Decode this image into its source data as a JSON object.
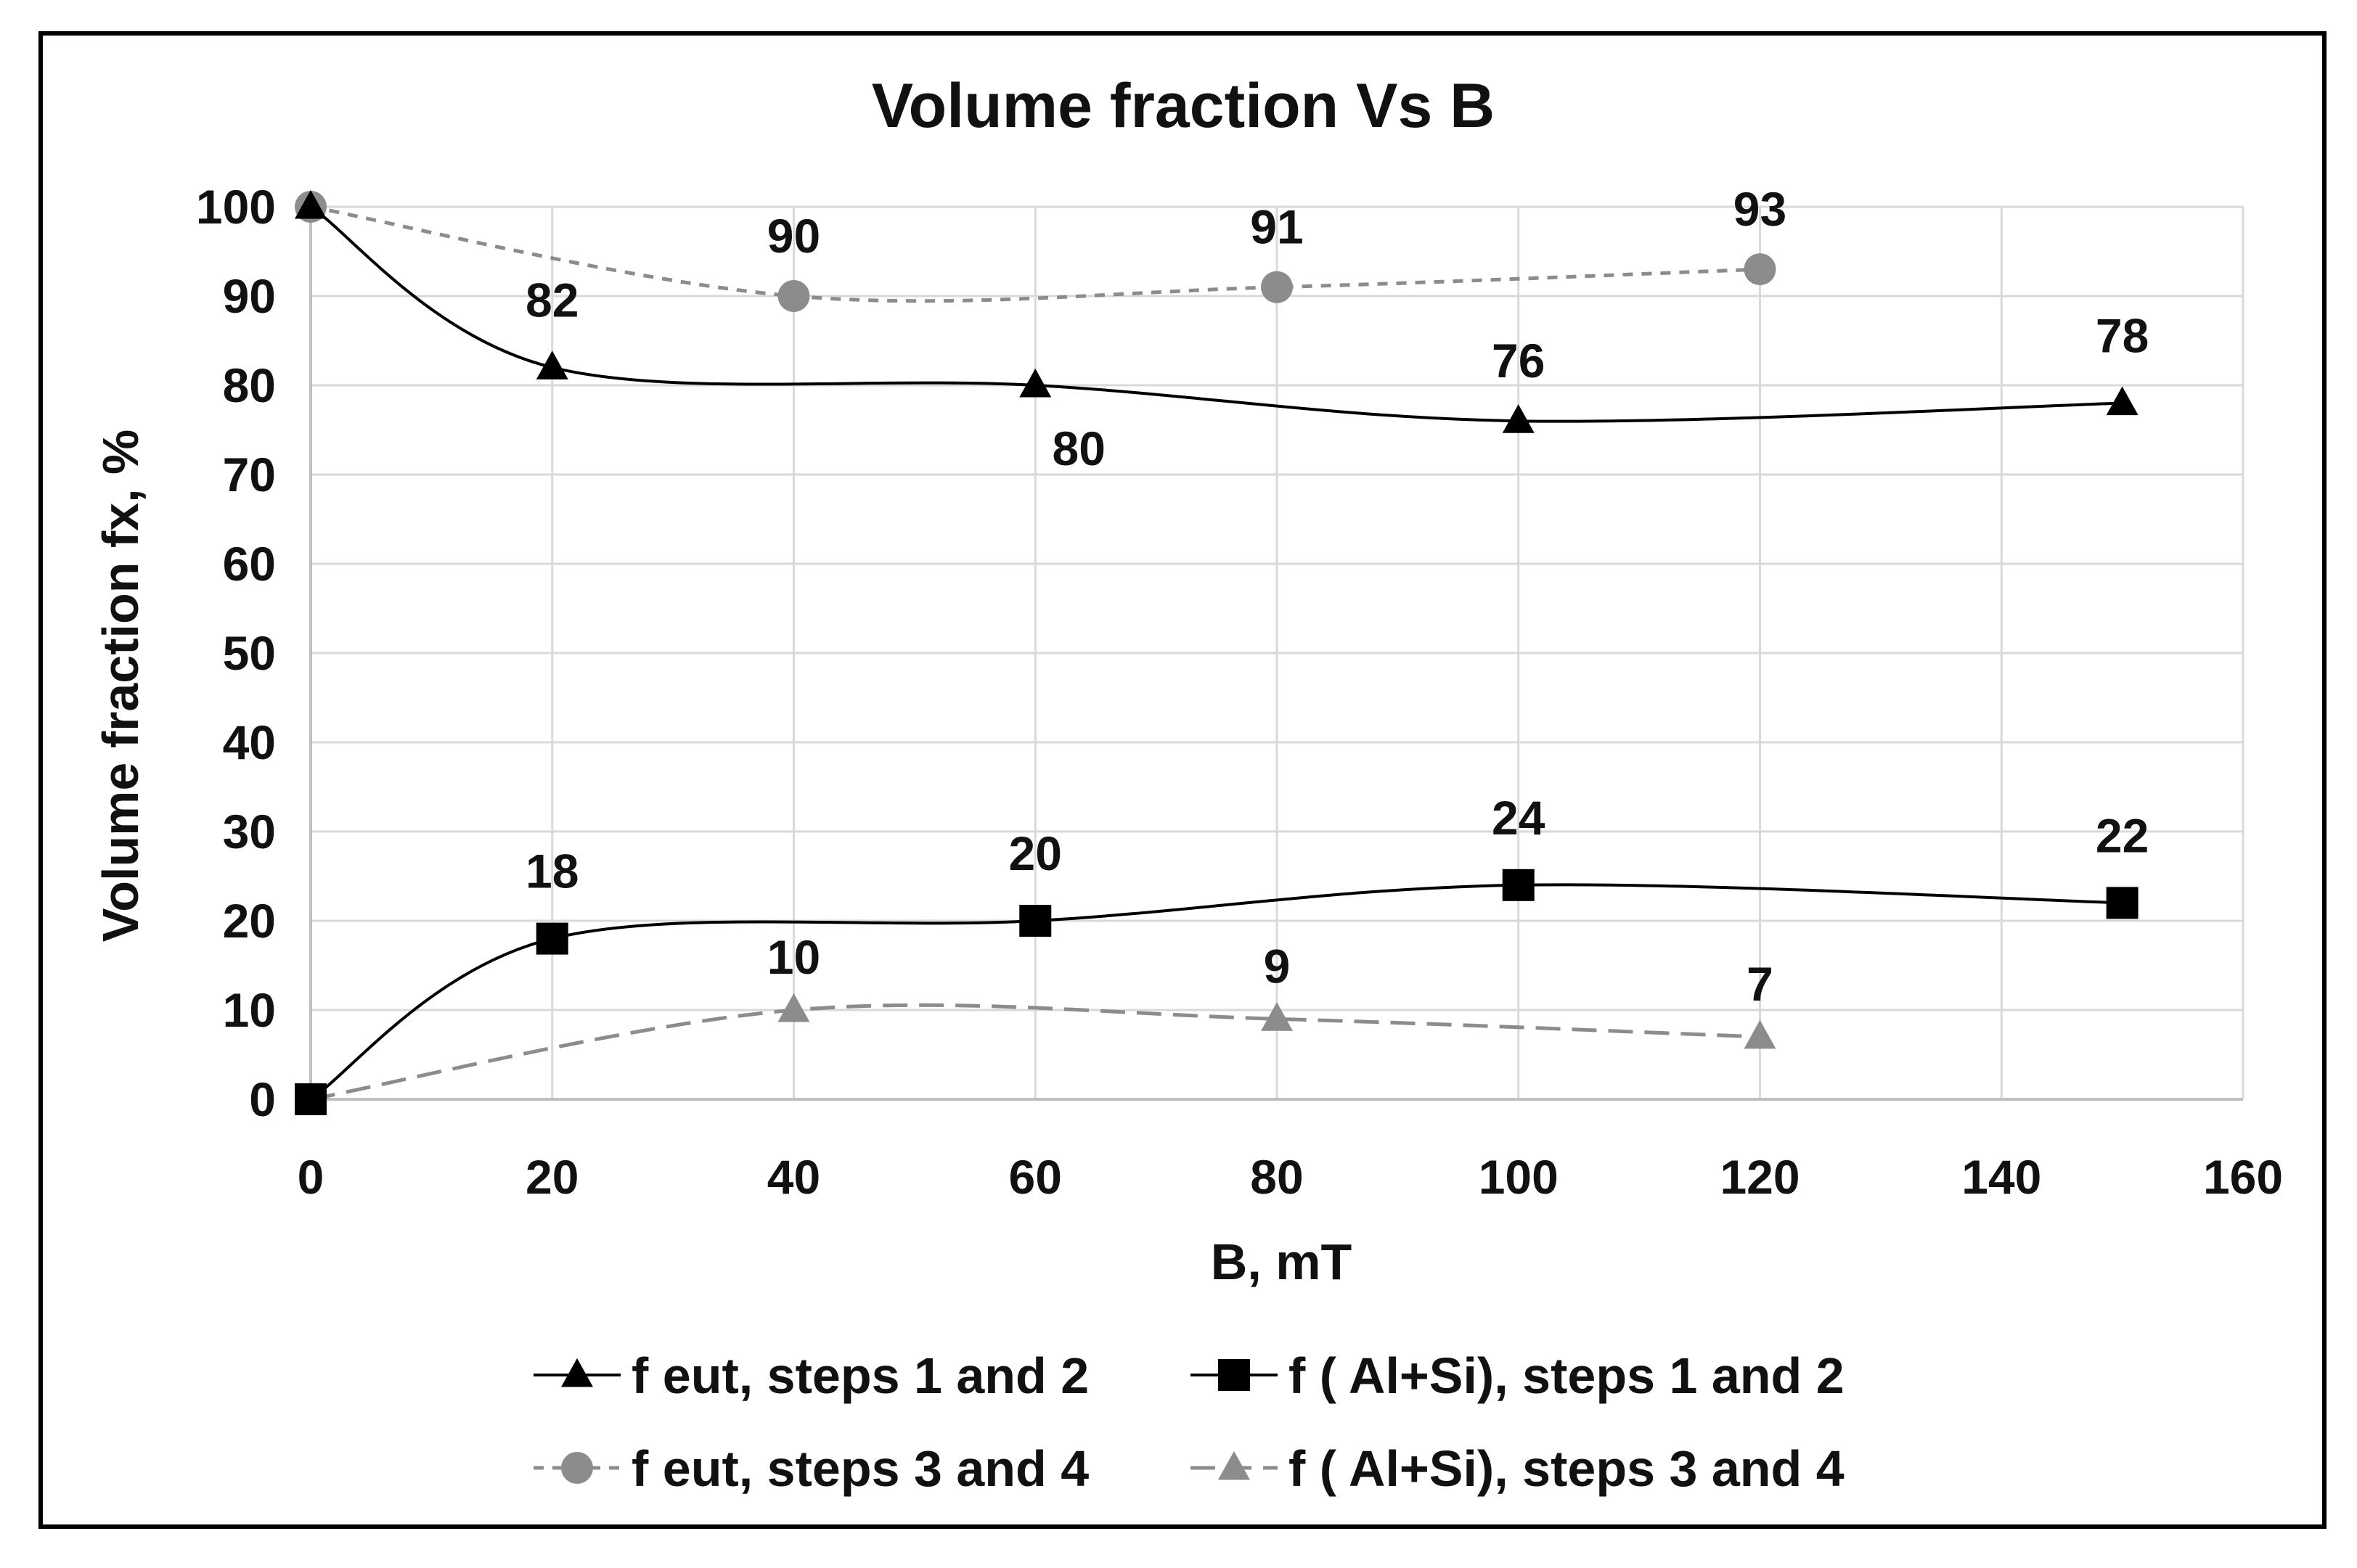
{
  "chart_data": {
    "type": "line",
    "title": "Volume fraction Vs B",
    "xlabel": "B, mT",
    "ylabel": "Volume fraction fx, %",
    "xlim": [
      0,
      160
    ],
    "ylim": [
      0,
      100
    ],
    "x_ticks": [
      0,
      20,
      40,
      60,
      80,
      100,
      120,
      140,
      160
    ],
    "y_ticks": [
      0,
      10,
      20,
      30,
      40,
      50,
      60,
      70,
      80,
      90,
      100
    ],
    "grid": true,
    "legend_position": "bottom",
    "series": [
      {
        "name": "f eut, steps 1 and 2",
        "color": "#000000",
        "marker": "triangle",
        "dash": "solid",
        "x": [
          0,
          20,
          60,
          100,
          150
        ],
        "y": [
          100,
          82,
          80,
          76,
          78
        ],
        "labels": [
          "",
          "82",
          "80",
          "76",
          "78"
        ]
      },
      {
        "name": "f ( Al+Si), steps 1 and 2",
        "color": "#000000",
        "marker": "square",
        "dash": "solid",
        "x": [
          0,
          20,
          60,
          100,
          150
        ],
        "y": [
          0,
          18,
          20,
          24,
          22
        ],
        "labels": [
          "",
          "18",
          "20",
          "24",
          "22"
        ]
      },
      {
        "name": "f eut, steps 3 and 4",
        "color": "#8c8c8c",
        "marker": "circle",
        "dash": "short",
        "x": [
          0,
          40,
          80,
          120
        ],
        "y": [
          100,
          90,
          91,
          93
        ],
        "labels": [
          "",
          "90",
          "91",
          "93"
        ]
      },
      {
        "name": "f ( Al+Si), steps 3 and 4",
        "color": "#8c8c8c",
        "marker": "triangle",
        "dash": "long",
        "x": [
          0,
          40,
          80,
          120
        ],
        "y": [
          0,
          10,
          9,
          7
        ],
        "labels": [
          "",
          "10",
          "9",
          "7"
        ]
      }
    ]
  }
}
